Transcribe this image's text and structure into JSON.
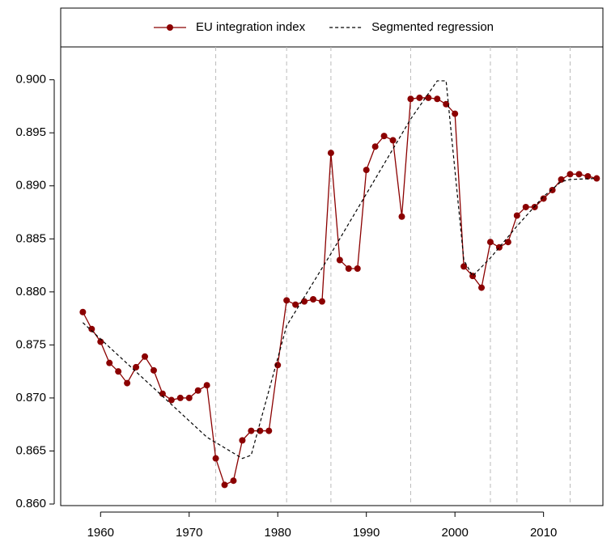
{
  "chart_data": {
    "type": "line",
    "x": [
      1958,
      1959,
      1960,
      1961,
      1962,
      1963,
      1964,
      1965,
      1966,
      1967,
      1968,
      1969,
      1970,
      1971,
      1972,
      1973,
      1974,
      1975,
      1976,
      1977,
      1978,
      1979,
      1980,
      1981,
      1982,
      1983,
      1984,
      1985,
      1986,
      1987,
      1988,
      1989,
      1990,
      1991,
      1992,
      1993,
      1994,
      1995,
      1996,
      1997,
      1998,
      1999,
      2000,
      2001,
      2002,
      2003,
      2004,
      2005,
      2006,
      2007,
      2008,
      2009,
      2010,
      2011,
      2012,
      2013,
      2014,
      2015,
      2016
    ],
    "series": [
      {
        "name": "EU integration index",
        "color": "#8b0000",
        "style": "line-points",
        "values": [
          0.8781,
          0.8765,
          0.8753,
          0.8733,
          0.8725,
          0.8714,
          0.8729,
          0.8739,
          0.8726,
          0.8704,
          0.8698,
          0.87,
          0.87,
          0.8707,
          0.8712,
          0.8643,
          0.8618,
          0.8622,
          0.866,
          0.8669,
          0.8669,
          0.8669,
          0.8731,
          0.8792,
          0.8788,
          0.8791,
          0.8793,
          0.8791,
          0.8931,
          0.883,
          0.8822,
          0.8822,
          0.8915,
          0.8937,
          0.8947,
          0.8943,
          0.8871,
          0.8982,
          0.8983,
          0.8983,
          0.8982,
          0.8977,
          0.8968,
          0.8824,
          0.8815,
          0.8804,
          0.8847,
          0.8842,
          0.8847,
          0.8872,
          0.888,
          0.888,
          0.8888,
          0.8896,
          0.8906,
          0.8911,
          0.8911,
          0.8909,
          0.8907
        ]
      },
      {
        "name": "Segmented regression",
        "color": "#000000",
        "style": "dashed",
        "x": [
          1958,
          1972,
          1976,
          1977,
          1981,
          1986,
          1995,
          1998,
          1999,
          2001,
          2002,
          2004,
          2007,
          2010,
          2012,
          2013,
          2016
        ],
        "values": [
          0.8771,
          0.8663,
          0.8643,
          0.8646,
          0.8768,
          0.8836,
          0.8963,
          0.8999,
          0.8999,
          0.883,
          0.8815,
          0.8832,
          0.8862,
          0.889,
          0.8904,
          0.8906,
          0.8907
        ]
      }
    ],
    "breakpoints": [
      1973,
      1981,
      1986,
      1995,
      2004,
      2007,
      2013
    ],
    "xlim": [
      1955.5,
      2016.7
    ],
    "ylim": [
      0.85985,
      0.9031
    ],
    "xticks": [
      1960,
      1970,
      1980,
      1990,
      2000,
      2010
    ],
    "yticks": [
      {
        "value": 0.86,
        "label": "0.860"
      },
      {
        "value": 0.865,
        "label": "0.865"
      },
      {
        "value": 0.87,
        "label": "0.870"
      },
      {
        "value": 0.875,
        "label": "0.875"
      },
      {
        "value": 0.88,
        "label": "0.880"
      },
      {
        "value": 0.885,
        "label": "0.885"
      },
      {
        "value": 0.89,
        "label": "0.890"
      },
      {
        "value": 0.895,
        "label": "0.895"
      },
      {
        "value": 0.9,
        "label": "0.900"
      }
    ],
    "legend": "top"
  }
}
